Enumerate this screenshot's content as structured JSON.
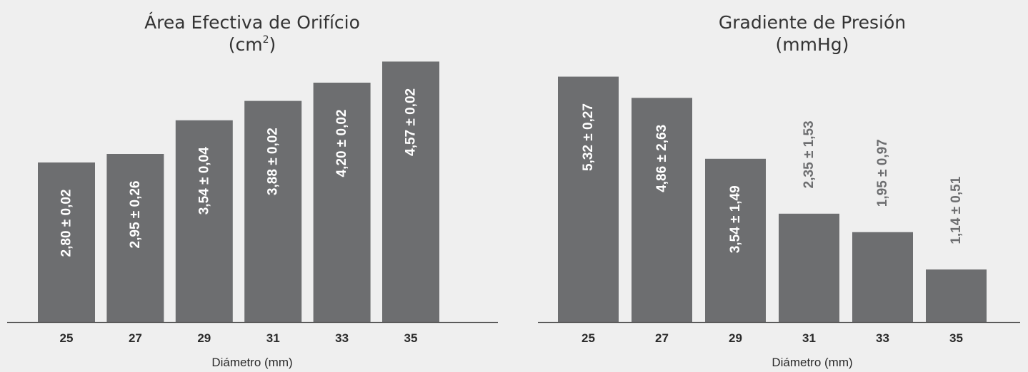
{
  "chart_data": [
    {
      "type": "bar",
      "title": "Área Efectiva de Orifício",
      "subtitle_prefix": "(cm",
      "subtitle_superscript": "2",
      "subtitle_suffix": ")",
      "xlabel": "Diámetro (mm)",
      "ylabel": "",
      "categories": [
        "25",
        "27",
        "29",
        "31",
        "33",
        "35"
      ],
      "values": [
        2.8,
        2.95,
        3.54,
        3.88,
        4.2,
        4.57
      ],
      "labels": [
        "2,80 ± 0,02",
        "2,95 ± 0,26",
        "3,54 ± 0,04",
        "3,88 ± 0,02",
        "4,20 ± 0,02",
        "4,57 ± 0,02"
      ],
      "ylim": [
        0,
        4.8
      ],
      "grid": false,
      "legend": "none",
      "bar_color": "#6d6e70",
      "label_inside_color": "#ffffff",
      "label_outside_color": "#6d6e70"
    },
    {
      "type": "bar",
      "title": "Gradiente de Presión",
      "subtitle_prefix": "(mmHg)",
      "subtitle_superscript": "",
      "subtitle_suffix": "",
      "xlabel": "Diámetro (mm)",
      "ylabel": "",
      "categories": [
        "25",
        "27",
        "29",
        "31",
        "33",
        "35"
      ],
      "values": [
        5.32,
        4.86,
        3.54,
        2.35,
        1.95,
        1.14
      ],
      "labels": [
        "5,32 ± 0,27",
        "4,86 ± 2,63",
        "3,54 ± 1,49",
        "2,35 ± 1,53",
        "1,95 ± 0,97",
        "1,14 ± 0,51"
      ],
      "ylim": [
        0,
        5.9
      ],
      "grid": false,
      "legend": "none",
      "bar_color": "#6d6e70",
      "label_inside_color": "#ffffff",
      "label_outside_color": "#6d6e70"
    }
  ]
}
